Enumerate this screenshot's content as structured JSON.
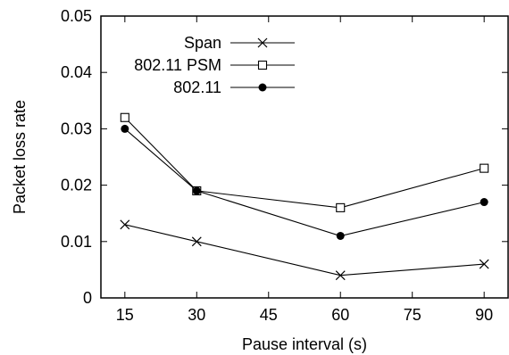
{
  "chart_data": {
    "type": "line",
    "title": "",
    "xlabel": "Pause interval (s)",
    "ylabel": "Packet loss rate",
    "xlim": [
      10,
      95
    ],
    "ylim": [
      0,
      0.05
    ],
    "xticks": [
      15,
      30,
      45,
      60,
      75,
      90
    ],
    "yticks": [
      0,
      0.01,
      0.02,
      0.03,
      0.04,
      0.05
    ],
    "xtick_labels": [
      "15",
      "30",
      "45",
      "60",
      "75",
      "90"
    ],
    "ytick_labels": [
      "0",
      "0.01",
      "0.02",
      "0.03",
      "0.04",
      "0.05"
    ],
    "grid": false,
    "legend_position": "top-center",
    "series": [
      {
        "name": "Span",
        "marker": "x",
        "x": [
          15,
          30,
          60,
          90
        ],
        "y": [
          0.013,
          0.01,
          0.004,
          0.006
        ]
      },
      {
        "name": "802.11 PSM",
        "marker": "open-square",
        "x": [
          15,
          30,
          60,
          90
        ],
        "y": [
          0.032,
          0.019,
          0.016,
          0.023
        ]
      },
      {
        "name": "802.11",
        "marker": "filled-circle",
        "x": [
          15,
          30,
          60,
          90
        ],
        "y": [
          0.03,
          0.019,
          0.011,
          0.017
        ]
      }
    ]
  }
}
